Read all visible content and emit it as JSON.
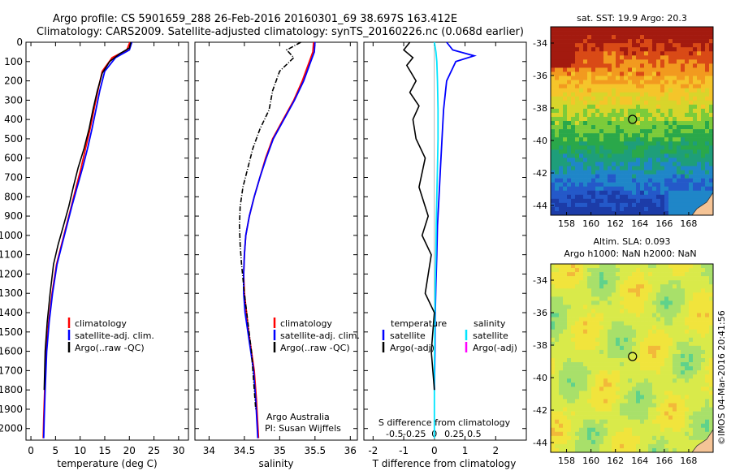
{
  "header": {
    "line1": "Argo profile: CS 5901659_288 26-Feb-2016 20160301_69 38.697S 163.412E",
    "line2": "Climatology: CARS2009. Satellite-adjusted climatology: synTS_20160226.nc (0.068d earlier)"
  },
  "credit": {
    "line1": "Argo Australia",
    "line2": "PI: Susan Wijffels"
  },
  "stamp": "©IMOS 04-Mar-2016 20:41:56",
  "map_titles": {
    "sst": "sat. SST: 19.9 Argo: 20.3",
    "sla_line1": "Altim. SLA: 0.093",
    "sla_line2": "Argo h1000: NaN h2000: NaN"
  },
  "colors": {
    "climatology": "#ff0000",
    "satellite": "#0000ff",
    "argo": "#000000",
    "salinity_satellite": "#00e5ff",
    "salinity_argo": "#ff00ff",
    "land": "#f5c496"
  },
  "chart_data": [
    {
      "type": "line",
      "xlabel": "temperature (deg C)",
      "ylabel": "",
      "xlim": [
        -1,
        32
      ],
      "ylim": [
        2060,
        0
      ],
      "xticks": [
        0,
        5,
        10,
        15,
        20,
        25,
        30
      ],
      "xtick_labels": [
        "0",
        "5",
        "10",
        "15",
        "20",
        "25",
        "30"
      ],
      "yticks": [
        0,
        100,
        200,
        300,
        400,
        500,
        600,
        700,
        800,
        900,
        1000,
        1100,
        1200,
        1300,
        1400,
        1500,
        1600,
        1700,
        1800,
        1900,
        2000
      ],
      "ytick_labels": [
        "0",
        "100",
        "200",
        "300",
        "400",
        "500",
        "600",
        "700",
        "800",
        "900",
        "1000",
        "1100",
        "1200",
        "1300",
        "1400",
        "1500",
        "1600",
        "1700",
        "1800",
        "1900",
        "2000"
      ],
      "legend": [
        "climatology",
        "satellite-adj. clim.",
        "Argo(..raw -QC)"
      ],
      "series": [
        {
          "name": "climatology",
          "x": [
            20.1,
            19.5,
            16.5,
            14.5,
            13.6,
            12.8,
            12.0,
            11.1,
            10.2,
            9.2,
            8.2,
            7.2,
            6.2,
            5.2,
            4.3,
            3.6,
            3.1,
            2.8,
            2.6,
            2.5
          ],
          "y": [
            0,
            40,
            80,
            150,
            250,
            350,
            450,
            550,
            650,
            750,
            850,
            950,
            1050,
            1150,
            1300,
            1450,
            1600,
            1800,
            1950,
            2050
          ]
        },
        {
          "name": "satellite-adj. clim.",
          "x": [
            20.5,
            20.0,
            17.2,
            15.0,
            14.0,
            13.2,
            12.4,
            11.5,
            10.5,
            9.4,
            8.3,
            7.3,
            6.3,
            5.3,
            4.4,
            3.7,
            3.2,
            2.9,
            2.7,
            2.6
          ],
          "y": [
            0,
            40,
            80,
            150,
            250,
            350,
            450,
            550,
            650,
            750,
            850,
            950,
            1050,
            1150,
            1300,
            1450,
            1600,
            1800,
            1950,
            2050
          ]
        },
        {
          "name": "Argo(..raw -QC)",
          "x": [
            20.3,
            20.0,
            18.0,
            16.0,
            14.5,
            13.5,
            12.6,
            11.8,
            10.8,
            9.6,
            8.6,
            7.7,
            6.6,
            5.5,
            4.6,
            3.9,
            3.3,
            2.9,
            2.7
          ],
          "y": [
            0,
            30,
            60,
            100,
            160,
            250,
            350,
            450,
            550,
            650,
            750,
            850,
            950,
            1050,
            1150,
            1300,
            1450,
            1600,
            1800
          ]
        }
      ]
    },
    {
      "type": "line",
      "xlabel": "salinity",
      "ylabel": "",
      "xlim": [
        33.8,
        36.1
      ],
      "ylim": [
        2060,
        0
      ],
      "xticks": [
        34,
        34.5,
        35,
        35.5,
        36
      ],
      "xtick_labels": [
        "34",
        "34.5",
        "35",
        "35.5",
        "36"
      ],
      "legend": [
        "climatology",
        "satellite-adj. clim.",
        "Argo(..raw -QC)"
      ],
      "series": [
        {
          "name": "climatology",
          "x": [
            35.48,
            35.47,
            35.42,
            35.32,
            35.2,
            35.05,
            34.9,
            34.8,
            34.72,
            34.64,
            34.57,
            34.52,
            34.5,
            34.49,
            34.5,
            34.53,
            34.56,
            34.6,
            34.64,
            34.67,
            34.7
          ],
          "y": [
            0,
            50,
            100,
            200,
            300,
            400,
            500,
            600,
            700,
            800,
            900,
            1000,
            1100,
            1200,
            1300,
            1400,
            1500,
            1600,
            1700,
            1850,
            2050
          ]
        },
        {
          "name": "satellite-adj. clim.",
          "x": [
            35.5,
            35.49,
            35.44,
            35.34,
            35.21,
            35.06,
            34.91,
            34.81,
            34.72,
            34.64,
            34.57,
            34.52,
            34.5,
            34.49,
            34.49,
            34.51,
            34.55,
            34.59,
            34.63,
            34.66,
            34.69
          ],
          "y": [
            0,
            50,
            100,
            200,
            300,
            400,
            500,
            600,
            700,
            800,
            900,
            1000,
            1100,
            1200,
            1300,
            1400,
            1500,
            1600,
            1700,
            1850,
            2050
          ]
        },
        {
          "name": "Argo(..raw -QC)",
          "x": [
            35.3,
            35.1,
            35.2,
            35.0,
            34.9,
            34.85,
            34.72,
            34.62,
            34.55,
            34.48,
            34.44,
            34.43,
            34.44,
            34.46,
            34.5,
            34.55,
            34.6,
            34.63,
            34.66
          ],
          "y": [
            0,
            40,
            80,
            150,
            250,
            350,
            450,
            550,
            650,
            750,
            850,
            950,
            1050,
            1150,
            1300,
            1450,
            1600,
            1750,
            1900
          ]
        }
      ]
    },
    {
      "type": "line",
      "xlabel": "T difference from climatology",
      "top_label": "S difference from climatology",
      "ylabel": "",
      "xlim": [
        -2.3,
        3.0
      ],
      "ylim": [
        2060,
        0
      ],
      "xticks": [
        -2,
        -1,
        0,
        1,
        2
      ],
      "xtick_labels": [
        "-2",
        "-1",
        "0",
        "1",
        "2"
      ],
      "secondary_xtick_labels": [
        "-0.5",
        "-0.25",
        "0",
        "0.25",
        "0.5"
      ],
      "legend_temperature": [
        "temperature",
        "satellite",
        "Argo(-adj)"
      ],
      "legend_salinity": [
        "salinity",
        "satellite",
        "Argo(-adj)"
      ],
      "series": [
        {
          "name": "satellite",
          "x": [
            0.4,
            0.6,
            1.3,
            0.7,
            0.4,
            0.3,
            0.25,
            0.2,
            0.15,
            0.1,
            0.08,
            0.05,
            0.03,
            0.02,
            0.0
          ],
          "y": [
            0,
            40,
            70,
            100,
            200,
            350,
            500,
            650,
            800,
            950,
            1100,
            1250,
            1400,
            1600,
            1800
          ]
        },
        {
          "name": "salinity satellite",
          "x": [
            0.0,
            0.05,
            0.08,
            0.1,
            0.12,
            0.12,
            0.1,
            0.08,
            0.06,
            0.05,
            0.03,
            0.02,
            0.01,
            0.0,
            0.0
          ],
          "y": [
            0,
            50,
            100,
            200,
            350,
            500,
            650,
            800,
            950,
            1100,
            1250,
            1400,
            1550,
            1700,
            2050
          ]
        },
        {
          "name": "Argo(-adj)",
          "x": [
            -0.8,
            -1.0,
            -0.7,
            -0.9,
            -0.6,
            -0.8,
            -0.5,
            -0.7,
            -0.6,
            -0.3,
            -0.5,
            -0.2,
            -0.4,
            -0.1,
            -0.3,
            0.0,
            -0.1,
            0.0
          ],
          "y": [
            0,
            40,
            80,
            120,
            200,
            260,
            330,
            400,
            500,
            600,
            750,
            900,
            1000,
            1100,
            1300,
            1400,
            1600,
            1800
          ]
        }
      ]
    }
  ],
  "maps": {
    "sst": {
      "xtick_labels": [
        "158",
        "160",
        "162",
        "164",
        "166",
        "168"
      ],
      "ytick_labels": [
        "-34",
        "-36",
        "-38",
        "-40",
        "-42",
        "-44"
      ],
      "marker": {
        "lon": 163.4,
        "lat": -38.7
      }
    },
    "sla": {
      "xtick_labels": [
        "158",
        "160",
        "162",
        "164",
        "166",
        "168"
      ],
      "ytick_labels": [
        "-34",
        "-36",
        "-38",
        "-40",
        "-42",
        "-44"
      ],
      "marker": {
        "lon": 163.4,
        "lat": -38.7
      }
    }
  }
}
